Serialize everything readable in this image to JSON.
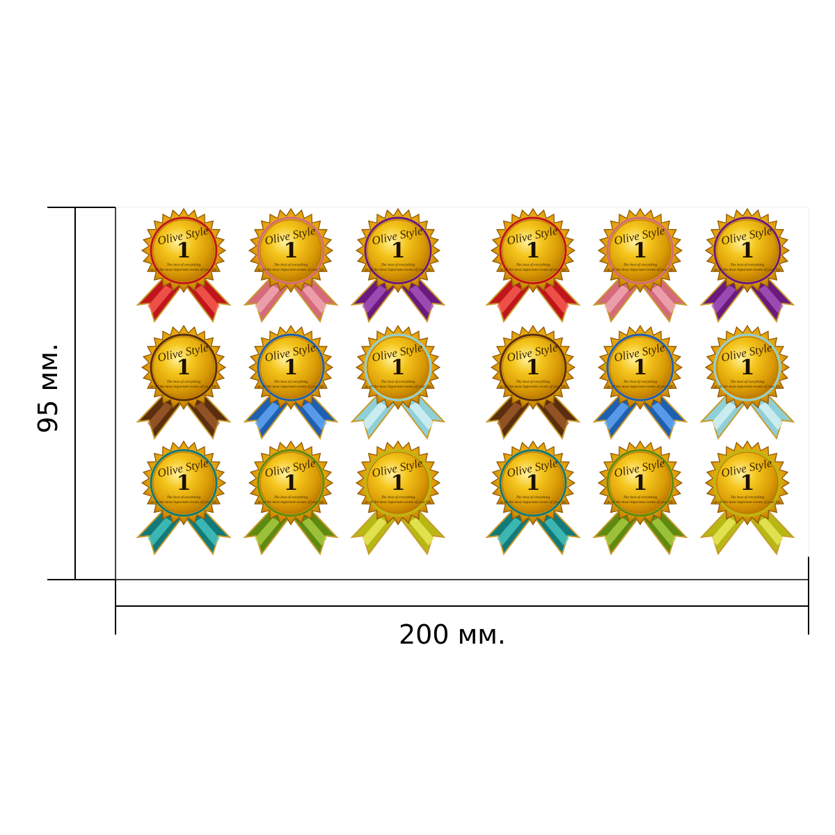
{
  "dimensions": {
    "height_label": "95 мм.",
    "width_label": "200 мм."
  },
  "badge": {
    "brand": "Olive Style",
    "number": "1",
    "caption_line1": "The best of everything",
    "caption_line2": "at all the most important events of your life"
  },
  "badge_grid": [
    [
      {
        "ribbon": "#c0151c",
        "accent": "#ff6a5a"
      },
      {
        "ribbon": "#d46a7a",
        "accent": "#f7b4bf"
      },
      {
        "ribbon": "#6a1a7e",
        "accent": "#b060c8"
      },
      {
        "ribbon": "#c0151c",
        "accent": "#ff6a5a"
      },
      {
        "ribbon": "#d46a7a",
        "accent": "#f7b4bf"
      },
      {
        "ribbon": "#6a1a7e",
        "accent": "#b060c8"
      }
    ],
    [
      {
        "ribbon": "#5a2e0e",
        "accent": "#a8642c"
      },
      {
        "ribbon": "#1f5fb0",
        "accent": "#6fb4ff"
      },
      {
        "ribbon": "#8fd0d8",
        "accent": "#e4f8fa"
      },
      {
        "ribbon": "#5a2e0e",
        "accent": "#a8642c"
      },
      {
        "ribbon": "#1f5fb0",
        "accent": "#6fb4ff"
      },
      {
        "ribbon": "#8fd0d8",
        "accent": "#e4f8fa"
      }
    ],
    [
      {
        "ribbon": "#127a7a",
        "accent": "#4fd0c8"
      },
      {
        "ribbon": "#5f8a12",
        "accent": "#b7d84a"
      },
      {
        "ribbon": "#b8b814",
        "accent": "#f2f26a"
      },
      {
        "ribbon": "#127a7a",
        "accent": "#4fd0c8"
      },
      {
        "ribbon": "#5f8a12",
        "accent": "#b7d84a"
      },
      {
        "ribbon": "#b8b814",
        "accent": "#f2f26a"
      }
    ]
  ]
}
